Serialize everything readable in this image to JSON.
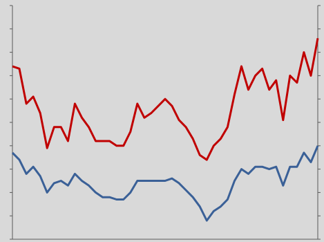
{
  "chart_data": {
    "type": "line",
    "x": [
      0,
      1,
      2,
      3,
      4,
      5,
      6,
      7,
      8,
      9,
      10,
      11,
      12,
      13,
      14,
      15,
      16,
      17,
      18,
      19,
      20,
      21,
      22,
      23,
      24,
      25,
      26,
      27,
      28,
      29,
      30,
      31,
      32,
      33,
      34,
      35,
      36,
      37,
      38,
      39,
      40,
      41,
      42,
      43,
      44
    ],
    "xlim": [
      0,
      44
    ],
    "ylim": [
      0,
      10
    ],
    "yticks": [
      0,
      1,
      2,
      3,
      4,
      5,
      6,
      7,
      8,
      9,
      10
    ],
    "series": [
      {
        "color": "#c00000",
        "values": [
          7.4,
          7.3,
          5.8,
          6.1,
          5.4,
          3.9,
          4.8,
          4.8,
          4.2,
          5.8,
          5.2,
          4.8,
          4.2,
          4.2,
          4.2,
          4.0,
          4.0,
          4.6,
          5.8,
          5.2,
          5.4,
          5.7,
          6.0,
          5.7,
          5.1,
          4.8,
          4.3,
          3.6,
          3.4,
          4.0,
          4.3,
          4.8,
          6.2,
          7.4,
          6.4,
          7.0,
          7.3,
          6.4,
          6.8,
          5.1,
          7.0,
          6.7,
          8.0,
          7.0,
          8.6
        ]
      },
      {
        "color": "#3a6097",
        "values": [
          3.7,
          3.4,
          2.8,
          3.1,
          2.7,
          2.0,
          2.4,
          2.5,
          2.3,
          2.8,
          2.5,
          2.3,
          2.0,
          1.8,
          1.8,
          1.7,
          1.7,
          2.0,
          2.5,
          2.5,
          2.5,
          2.5,
          2.5,
          2.6,
          2.4,
          2.1,
          1.8,
          1.4,
          0.8,
          1.2,
          1.4,
          1.7,
          2.5,
          3.0,
          2.8,
          3.1,
          3.1,
          3.0,
          3.1,
          2.3,
          3.1,
          3.1,
          3.7,
          3.3,
          4.0
        ]
      }
    ]
  }
}
